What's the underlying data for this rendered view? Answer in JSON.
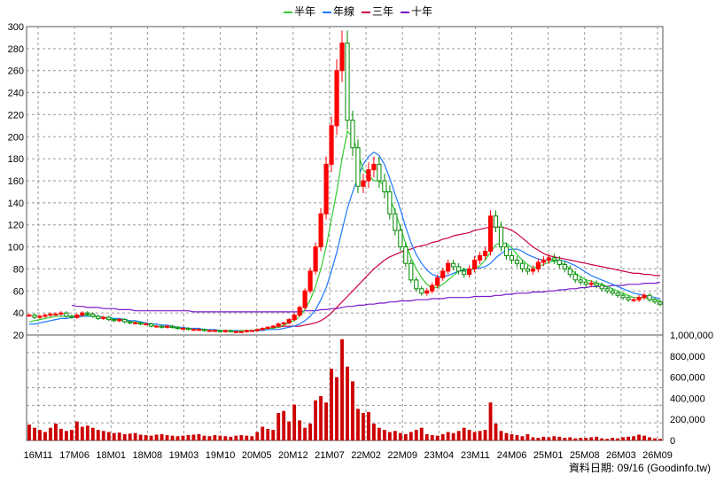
{
  "legend": [
    {
      "label": "半年",
      "color": "#33cc33"
    },
    {
      "label": "年線",
      "color": "#1e78ff"
    },
    {
      "label": "三年",
      "color": "#cc0044"
    },
    {
      "label": "十年",
      "color": "#7a18c8"
    }
  ],
  "footer": {
    "date_label": "資料日期: 09/16",
    "source": "(Goodinfo.tw)"
  },
  "colors": {
    "up": "#ff0000",
    "down": "#008800",
    "volume": "#cc0000",
    "grid": "#9a9a9a",
    "frame": "#555555"
  },
  "chart_data": {
    "type": "candlestick",
    "x_tick_labels": [
      "16M11",
      "17M06",
      "18M01",
      "18M08",
      "19M03",
      "19M10",
      "20M05",
      "20M12",
      "21M07",
      "22M02",
      "22M09",
      "23M04",
      "23M11",
      "24M06",
      "25M01",
      "25M08",
      "26M03",
      "26M09"
    ],
    "price_axis": {
      "ticks": [
        20,
        40,
        60,
        80,
        100,
        120,
        140,
        160,
        180,
        200,
        220,
        240,
        260,
        280,
        300
      ],
      "ylim": [
        20,
        300
      ]
    },
    "volume_axis": {
      "tick_labels": [
        "0",
        "200,000",
        "400,000",
        "600,000",
        "800,000",
        "1,000,000"
      ],
      "ticks": [
        0,
        200000,
        400000,
        600000,
        800000,
        1000000
      ],
      "ylim": [
        0,
        1000000
      ]
    },
    "price_close": [
      38,
      36,
      37,
      38,
      39,
      39,
      40,
      37,
      36,
      38,
      40,
      39,
      37,
      35,
      36,
      34,
      33,
      34,
      32,
      31,
      31,
      30,
      30,
      28,
      28,
      27,
      28,
      27,
      26,
      26,
      25,
      25,
      25,
      24,
      24,
      24,
      23,
      24,
      23,
      23,
      23,
      24,
      24,
      25,
      26,
      27,
      28,
      30,
      31,
      34,
      38,
      45,
      60,
      78,
      100,
      130,
      175,
      210,
      260,
      285,
      215,
      190,
      155,
      160,
      170,
      175,
      160,
      150,
      130,
      115,
      100,
      85,
      70,
      62,
      58,
      60,
      65,
      72,
      78,
      85,
      82,
      78,
      75,
      80,
      88,
      92,
      96,
      128,
      118,
      100,
      92,
      88,
      85,
      80,
      78,
      80,
      86,
      88,
      90,
      88,
      84,
      80,
      75,
      70,
      68,
      66,
      67,
      65,
      62,
      60,
      58,
      56,
      54,
      52,
      52,
      54,
      56,
      52,
      50,
      48
    ],
    "volume": [
      150000,
      120000,
      100000,
      80000,
      120000,
      160000,
      110000,
      90000,
      100000,
      180000,
      130000,
      140000,
      120000,
      100000,
      90000,
      80000,
      70000,
      75000,
      60000,
      65000,
      70000,
      55000,
      50000,
      45000,
      55000,
      60000,
      50000,
      45000,
      40000,
      45000,
      50000,
      55000,
      60000,
      45000,
      40000,
      50000,
      45000,
      40000,
      35000,
      45000,
      50000,
      45000,
      40000,
      80000,
      130000,
      110000,
      100000,
      260000,
      280000,
      180000,
      340000,
      190000,
      120000,
      160000,
      380000,
      420000,
      360000,
      680000,
      600000,
      960000,
      700000,
      560000,
      300000,
      260000,
      270000,
      160000,
      120000,
      100000,
      80000,
      90000,
      70000,
      60000,
      80000,
      100000,
      120000,
      60000,
      50000,
      45000,
      60000,
      80000,
      70000,
      90000,
      120000,
      100000,
      80000,
      90000,
      100000,
      360000,
      160000,
      90000,
      70000,
      60000,
      50000,
      40000,
      60000,
      30000,
      25000,
      35000,
      30000,
      40000,
      35000,
      25000,
      30000,
      20000,
      25000,
      25000,
      30000,
      35000,
      20000,
      15000,
      25000,
      20000,
      30000,
      35000,
      40000,
      55000,
      45000,
      30000,
      20000,
      15000
    ],
    "ma_half_year": [
      32,
      33,
      34,
      35,
      36,
      37,
      37,
      37,
      37,
      37,
      38,
      38,
      37,
      36,
      36,
      35,
      34,
      34,
      33,
      32,
      32,
      31,
      30,
      29,
      28,
      28,
      27,
      27,
      26,
      26,
      26,
      25,
      25,
      25,
      24,
      24,
      24,
      24,
      24,
      23,
      24,
      24,
      24,
      25,
      25,
      26,
      26,
      27,
      29,
      31,
      33,
      37,
      43,
      52,
      64,
      80,
      100,
      125,
      150,
      180,
      205,
      200,
      185,
      170,
      165,
      160,
      160,
      155,
      145,
      132,
      118,
      103,
      90,
      80,
      72,
      66,
      63,
      63,
      66,
      70,
      74,
      78,
      80,
      79,
      80,
      83,
      88,
      95,
      102,
      104,
      103,
      99,
      93,
      88,
      84,
      81,
      82,
      84,
      86,
      87,
      86,
      84,
      80,
      76,
      73,
      70,
      69,
      67,
      66,
      64,
      62,
      60,
      58,
      56,
      54,
      54,
      54,
      53,
      52,
      51
    ],
    "ma_year": [
      30,
      30,
      31,
      32,
      33,
      34,
      35,
      35,
      36,
      36,
      37,
      37,
      37,
      37,
      36,
      36,
      35,
      35,
      34,
      33,
      33,
      32,
      31,
      30,
      30,
      29,
      29,
      28,
      27,
      27,
      26,
      26,
      26,
      25,
      25,
      25,
      24,
      24,
      24,
      24,
      24,
      24,
      24,
      24,
      24,
      25,
      25,
      25,
      26,
      27,
      28,
      30,
      33,
      37,
      43,
      52,
      63,
      78,
      95,
      115,
      135,
      150,
      163,
      175,
      182,
      186,
      183,
      175,
      162,
      148,
      134,
      118,
      104,
      93,
      85,
      79,
      75,
      73,
      73,
      74,
      76,
      78,
      79,
      79,
      80,
      81,
      82,
      85,
      90,
      94,
      97,
      98,
      98,
      96,
      93,
      91,
      89,
      88,
      88,
      88,
      88,
      87,
      85,
      83,
      80,
      77,
      74,
      72,
      70,
      68,
      66,
      64,
      62,
      60,
      58,
      57,
      56,
      55,
      54,
      53
    ],
    "ma_three_year": [
      null,
      null,
      null,
      null,
      null,
      null,
      null,
      null,
      null,
      null,
      null,
      null,
      null,
      null,
      null,
      null,
      null,
      null,
      null,
      null,
      null,
      null,
      null,
      null,
      null,
      null,
      null,
      null,
      null,
      null,
      null,
      null,
      null,
      null,
      null,
      null,
      null,
      null,
      null,
      null,
      null,
      null,
      null,
      null,
      null,
      null,
      27,
      27,
      28,
      28,
      28,
      28,
      29,
      30,
      31,
      33,
      36,
      40,
      45,
      50,
      55,
      60,
      65,
      70,
      75,
      80,
      84,
      88,
      91,
      93,
      95,
      97,
      98,
      100,
      101,
      102,
      104,
      105,
      107,
      108,
      110,
      111,
      112,
      113,
      115,
      116,
      117,
      118,
      118,
      118,
      117,
      115,
      112,
      108,
      104,
      100,
      97,
      94,
      92,
      91,
      90,
      89,
      88,
      87,
      86,
      85,
      84,
      83,
      82,
      81,
      80,
      79,
      78,
      77,
      76,
      76,
      75,
      75,
      74,
      74
    ],
    "ma_ten_year": [
      null,
      null,
      null,
      null,
      null,
      null,
      null,
      null,
      47,
      46,
      46,
      45,
      45,
      45,
      44,
      44,
      44,
      43,
      43,
      43,
      42,
      42,
      42,
      42,
      42,
      42,
      42,
      42,
      42,
      42,
      42,
      41,
      41,
      41,
      41,
      41,
      41,
      41,
      41,
      41,
      41,
      41,
      41,
      41,
      41,
      41,
      41,
      41,
      41,
      41,
      41,
      41,
      42,
      42,
      42,
      43,
      43,
      44,
      44,
      45,
      46,
      46,
      47,
      47,
      48,
      48,
      49,
      49,
      50,
      50,
      51,
      51,
      51,
      52,
      52,
      52,
      53,
      53,
      53,
      54,
      54,
      54,
      54,
      54,
      55,
      55,
      55,
      55,
      56,
      56,
      57,
      57,
      58,
      58,
      58,
      59,
      59,
      59,
      60,
      60,
      61,
      61,
      62,
      62,
      63,
      63,
      64,
      64,
      64,
      64,
      65,
      65,
      65,
      66,
      66,
      66,
      67,
      67,
      67,
      68
    ]
  }
}
